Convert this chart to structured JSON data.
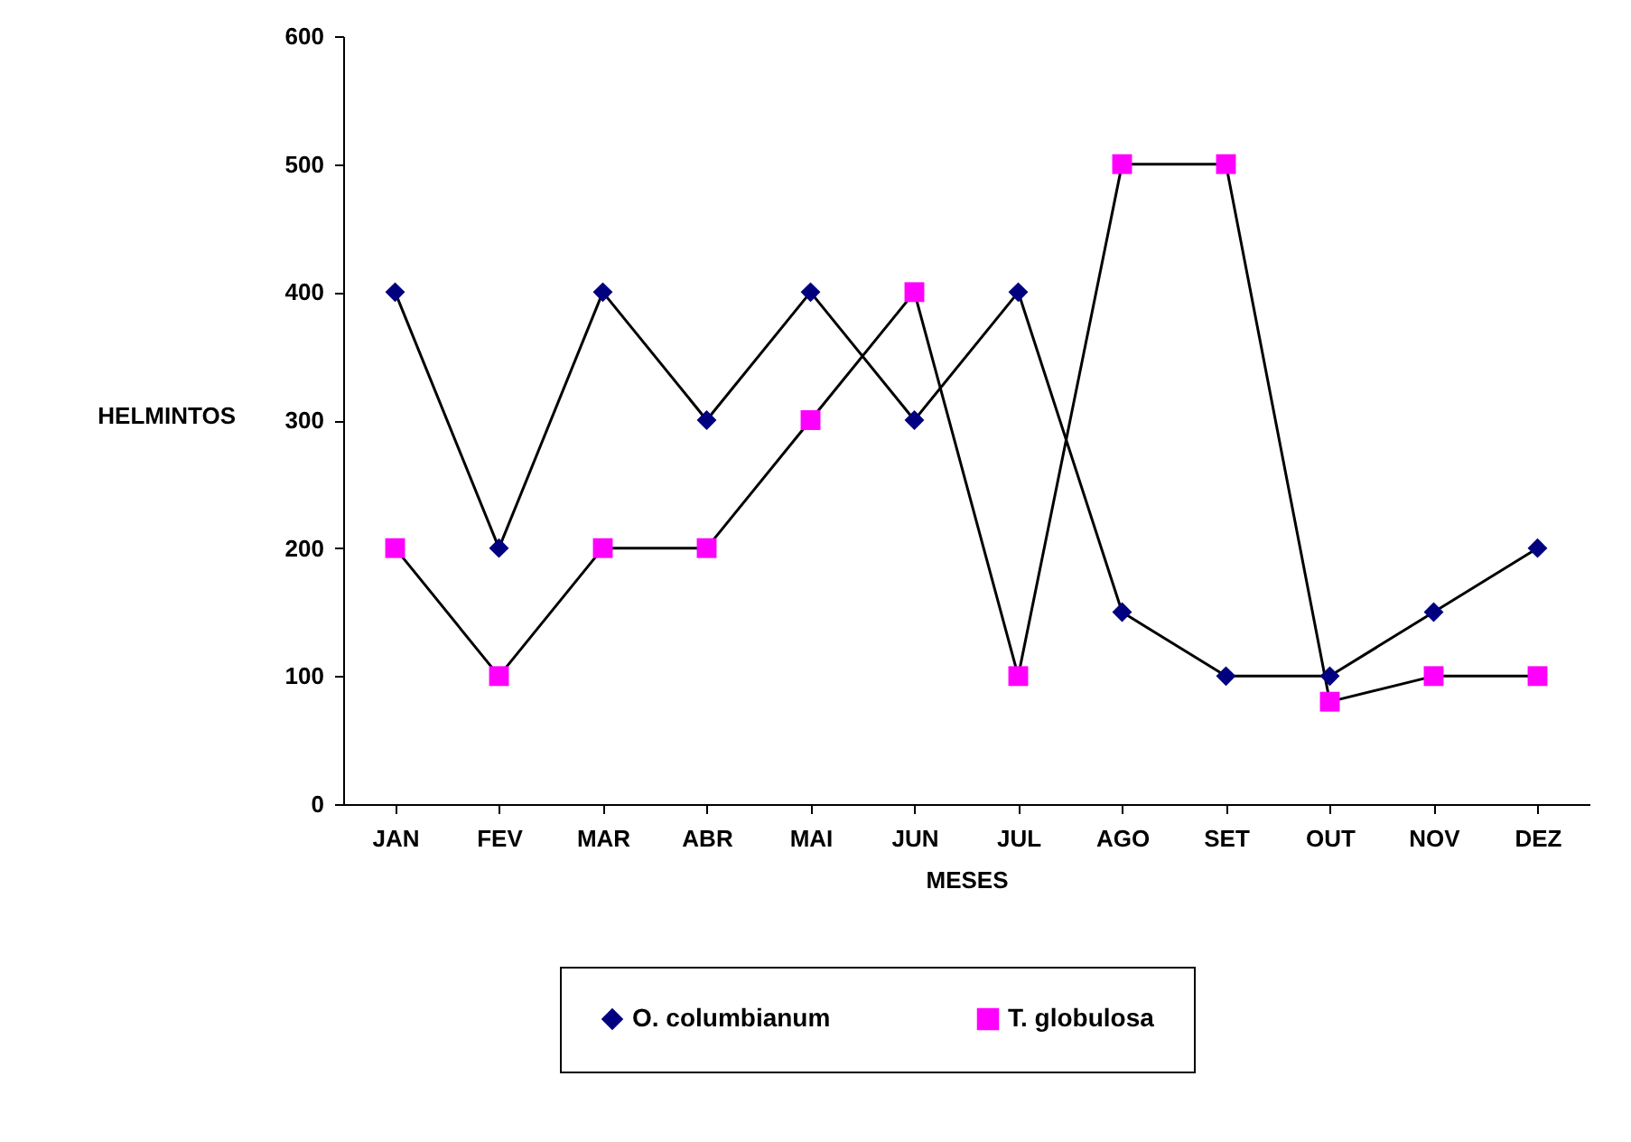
{
  "chart_data": {
    "type": "line",
    "xlabel": "MESES",
    "ylabel": "HELMINTOS",
    "categories": [
      "JAN",
      "FEV",
      "MAR",
      "ABR",
      "MAI",
      "JUN",
      "JUL",
      "AGO",
      "SET",
      "OUT",
      "NOV",
      "DEZ"
    ],
    "series": [
      {
        "name": "O. columbianum",
        "color": "#000080",
        "marker": "diamond",
        "values": [
          400,
          200,
          400,
          300,
          400,
          300,
          400,
          150,
          100,
          100,
          150,
          200
        ]
      },
      {
        "name": "T. globulosa",
        "color": "#ff00ff",
        "marker": "square",
        "values": [
          200,
          100,
          200,
          200,
          300,
          400,
          100,
          500,
          500,
          80,
          100,
          100
        ]
      }
    ],
    "ylim": [
      0,
      600
    ],
    "yticks": [
      0,
      100,
      200,
      300,
      400,
      500,
      600
    ],
    "grid": false,
    "legend": "bottom",
    "line_style": "solid"
  }
}
